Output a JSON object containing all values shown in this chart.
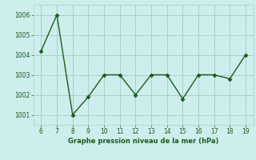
{
  "x": [
    6,
    7,
    8,
    9,
    10,
    11,
    12,
    13,
    14,
    15,
    16,
    17,
    18,
    19
  ],
  "y": [
    1004.2,
    1006.0,
    1001.0,
    1001.9,
    1003.0,
    1003.0,
    1002.0,
    1003.0,
    1003.0,
    1001.8,
    1003.0,
    1003.0,
    1002.8,
    1004.0
  ],
  "line_color": "#1a5c1a",
  "marker_color": "#1a5c1a",
  "bg_color": "#ceeeed",
  "grid_color": "#aacfce",
  "xlabel": "Graphe pression niveau de la mer (hPa)",
  "xlabel_color": "#1a5c1a",
  "tick_color": "#1a5c1a",
  "xlim": [
    5.5,
    19.5
  ],
  "ylim": [
    1000.5,
    1006.5
  ],
  "yticks": [
    1001,
    1002,
    1003,
    1004,
    1005,
    1006
  ],
  "xticks": [
    6,
    7,
    8,
    9,
    10,
    11,
    12,
    13,
    14,
    15,
    16,
    17,
    18,
    19
  ]
}
